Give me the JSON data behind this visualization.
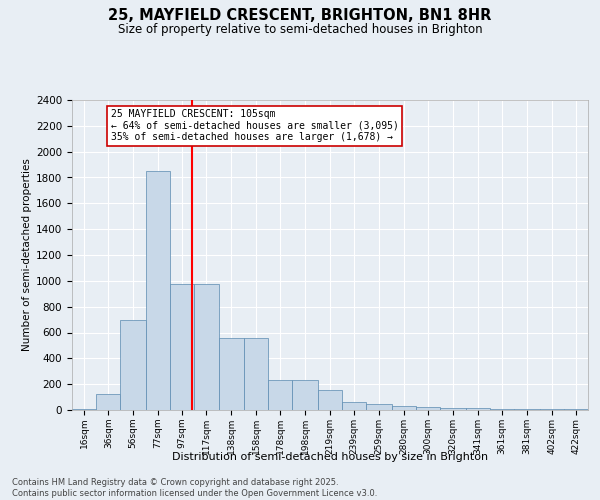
{
  "title": "25, MAYFIELD CRESCENT, BRIGHTON, BN1 8HR",
  "subtitle": "Size of property relative to semi-detached houses in Brighton",
  "xlabel": "Distribution of semi-detached houses by size in Brighton",
  "ylabel": "Number of semi-detached properties",
  "annotation_line1": "25 MAYFIELD CRESCENT: 105sqm",
  "annotation_line2": "← 64% of semi-detached houses are smaller (3,095)",
  "annotation_line3": "35% of semi-detached houses are larger (1,678) →",
  "footnote": "Contains HM Land Registry data © Crown copyright and database right 2025.\nContains public sector information licensed under the Open Government Licence v3.0.",
  "bar_color": "#c8d8e8",
  "bar_edge_color": "#5a8ab0",
  "background_color": "#e8eef4",
  "grid_color": "#ffffff",
  "red_line_x": 105,
  "annotation_box_color": "#ffffff",
  "annotation_box_edge": "#cc0000",
  "categories": [
    "16sqm",
    "36sqm",
    "56sqm",
    "77sqm",
    "97sqm",
    "117sqm",
    "138sqm",
    "158sqm",
    "178sqm",
    "198sqm",
    "219sqm",
    "239sqm",
    "259sqm",
    "280sqm",
    "300sqm",
    "320sqm",
    "341sqm",
    "361sqm",
    "381sqm",
    "402sqm",
    "422sqm"
  ],
  "bin_edges": [
    6,
    26,
    46,
    67,
    87,
    107,
    127,
    148,
    168,
    188,
    209,
    229,
    249,
    270,
    290,
    310,
    331,
    351,
    371,
    392,
    412,
    432
  ],
  "values": [
    5,
    125,
    700,
    1850,
    975,
    975,
    555,
    555,
    230,
    230,
    155,
    65,
    45,
    30,
    25,
    15,
    15,
    10,
    5,
    5,
    5
  ],
  "ylim": [
    0,
    2400
  ],
  "yticks": [
    0,
    200,
    400,
    600,
    800,
    1000,
    1200,
    1400,
    1600,
    1800,
    2000,
    2200,
    2400
  ]
}
